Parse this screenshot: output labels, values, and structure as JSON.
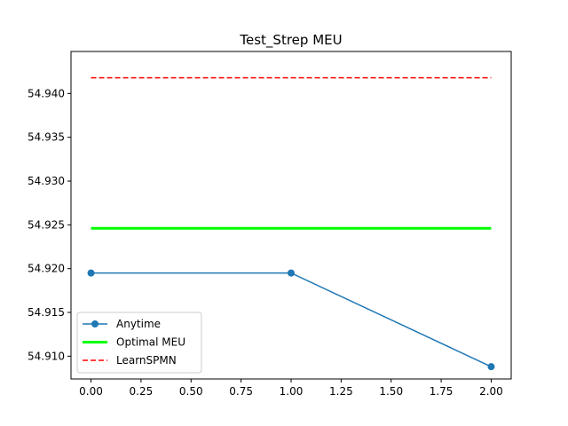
{
  "chart_data": {
    "type": "line",
    "title": "Test_Strep MEU",
    "xlabel": "",
    "ylabel": "",
    "xlim": [
      -0.1,
      2.1
    ],
    "ylim": [
      54.9074,
      54.9448
    ],
    "xticks": [
      0.0,
      0.25,
      0.5,
      0.75,
      1.0,
      1.25,
      1.5,
      1.75,
      2.0
    ],
    "xtick_labels": [
      "0.00",
      "0.25",
      "0.50",
      "0.75",
      "1.00",
      "1.25",
      "1.50",
      "1.75",
      "2.00"
    ],
    "yticks": [
      54.91,
      54.915,
      54.92,
      54.925,
      54.93,
      54.935,
      54.94
    ],
    "ytick_labels": [
      "54.910",
      "54.915",
      "54.920",
      "54.925",
      "54.930",
      "54.935",
      "54.940"
    ],
    "grid": false,
    "legend_position": "lower-left",
    "series": [
      {
        "name": "Anytime",
        "x": [
          0,
          1,
          2
        ],
        "y": [
          54.9195,
          54.9195,
          54.9088
        ],
        "color": "#1f77b4",
        "style": "solid",
        "marker": "circle"
      },
      {
        "name": "Optimal MEU",
        "x": [
          0,
          1,
          2
        ],
        "y": [
          54.9246,
          54.9246,
          54.9246
        ],
        "color": "#00ff00",
        "style": "solid",
        "marker": "none"
      },
      {
        "name": "LearnSPMN",
        "x": [
          0,
          1,
          2
        ],
        "y": [
          54.9418,
          54.9418,
          54.9418
        ],
        "color": "#ff0000",
        "style": "dashed",
        "marker": "none"
      }
    ]
  }
}
